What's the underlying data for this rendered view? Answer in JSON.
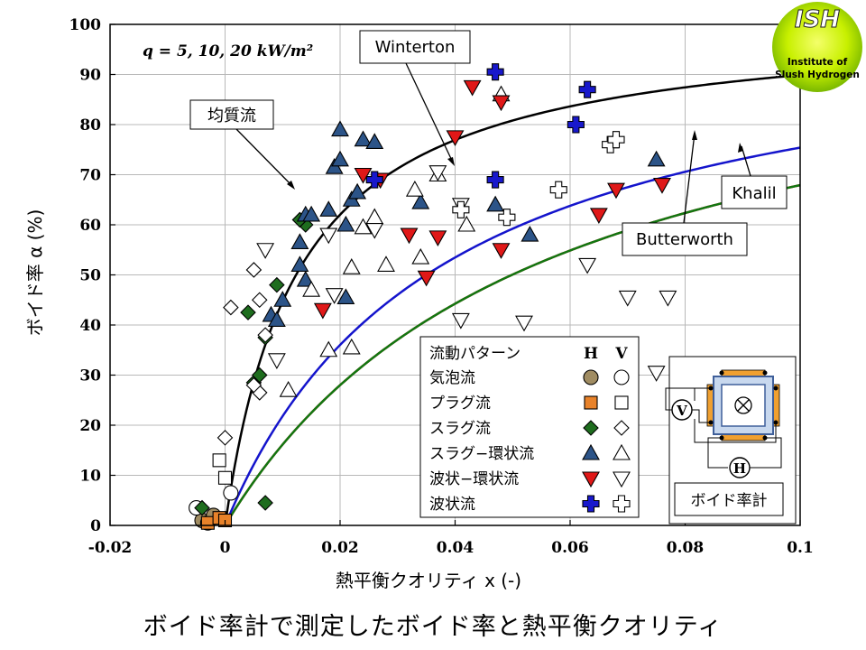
{
  "chart_data": {
    "type": "scatter",
    "xlabel": "熱平衡クオリティ x (-)",
    "ylabel": "ボイド率 α (%)",
    "xlim": [
      -0.02,
      0.1
    ],
    "ylim": [
      0,
      100
    ],
    "xticks": [
      -0.02,
      0,
      0.02,
      0.04,
      0.06,
      0.08,
      0.1
    ],
    "yticks": [
      0,
      10,
      20,
      30,
      40,
      50,
      60,
      70,
      80,
      90,
      100
    ],
    "xtick_labels": [
      "-0.02",
      "0",
      "0.02",
      "0.04",
      "0.06",
      "0.08",
      "0.1"
    ],
    "ytick_labels": [
      "0",
      "10",
      "20",
      "30",
      "40",
      "50",
      "60",
      "70",
      "80",
      "90",
      "100"
    ],
    "grid": true,
    "condition_label": "q = 5, 10, 20 kW/m²",
    "correlation_curves": [
      {
        "name": "均質流",
        "color": "#000000",
        "S": 1.0
      },
      {
        "name": "Winterton",
        "color": "#dd0000",
        "S": 4.2
      },
      {
        "name": "Butterworth",
        "color": "#1414cc",
        "S": 2.9
      },
      {
        "name": "Khalil",
        "color": "#117711",
        "S": 4.2
      }
    ],
    "curve_label_text": {
      "homogeneous": "均質流",
      "winterton": "Winterton",
      "butterworth": "Butterworth",
      "khalil": "Khalil"
    },
    "legend": {
      "header": "流動パターン",
      "col_h": "H",
      "col_v": "V",
      "entries": [
        {
          "label": "気泡流",
          "shape": "circle",
          "fill_h": "#a08c62"
        },
        {
          "label": "プラグ流",
          "shape": "square",
          "fill_h": "#e8822a"
        },
        {
          "label": "スラグ流",
          "shape": "diamond",
          "fill_h": "#1e6d1e"
        },
        {
          "label": "スラグ−環状流",
          "shape": "triangle-up",
          "fill_h": "#2c5488"
        },
        {
          "label": "波状−環状流",
          "shape": "triangle-down",
          "fill_h": "#e01818"
        },
        {
          "label": "波状流",
          "shape": "cross",
          "fill_h": "#1818cc"
        }
      ]
    },
    "series": [
      {
        "name": "気泡流 H",
        "shape": "circle",
        "filled": true,
        "color": "#a08c62",
        "points": [
          [
            -0.004,
            1.0
          ],
          [
            -0.003,
            0.5
          ],
          [
            -0.002,
            2.0
          ]
        ]
      },
      {
        "name": "気泡流 V",
        "shape": "circle",
        "filled": false,
        "points": [
          [
            -0.005,
            3.5
          ],
          [
            0.001,
            6.5
          ]
        ]
      },
      {
        "name": "プラグ流 H",
        "shape": "square",
        "filled": true,
        "color": "#e8822a",
        "points": [
          [
            -0.003,
            0.5
          ],
          [
            -0.001,
            1.5
          ],
          [
            0.0,
            1.0
          ]
        ]
      },
      {
        "name": "プラグ流 V",
        "shape": "square",
        "filled": false,
        "points": [
          [
            -0.001,
            13.0
          ],
          [
            0.0,
            9.5
          ]
        ]
      },
      {
        "name": "スラグ流 H",
        "shape": "diamond",
        "filled": true,
        "color": "#1e6d1e",
        "points": [
          [
            -0.004,
            3.5
          ],
          [
            0.004,
            42.5
          ],
          [
            0.007,
            4.5
          ],
          [
            0.005,
            28.5
          ],
          [
            0.006,
            30.0
          ],
          [
            0.007,
            37.5
          ],
          [
            0.009,
            48.0
          ],
          [
            0.014,
            60.0
          ],
          [
            0.013,
            61.0
          ]
        ]
      },
      {
        "name": "スラグ流 V",
        "shape": "diamond",
        "filled": false,
        "points": [
          [
            0.0,
            17.5
          ],
          [
            0.001,
            43.5
          ],
          [
            0.005,
            51.0
          ],
          [
            0.006,
            45.0
          ],
          [
            0.007,
            38.0
          ],
          [
            0.006,
            26.5
          ],
          [
            0.005,
            28.0
          ]
        ]
      },
      {
        "name": "スラグ−環状流 H",
        "shape": "triangle-up",
        "filled": true,
        "color": "#2c5488",
        "points": [
          [
            0.008,
            42.0
          ],
          [
            0.009,
            41.0
          ],
          [
            0.01,
            45.0
          ],
          [
            0.013,
            52.0
          ],
          [
            0.014,
            49.0
          ],
          [
            0.013,
            56.5
          ],
          [
            0.014,
            62.0
          ],
          [
            0.015,
            62.0
          ],
          [
            0.018,
            63.0
          ],
          [
            0.019,
            71.5
          ],
          [
            0.02,
            73.0
          ],
          [
            0.02,
            79.0
          ],
          [
            0.021,
            60.0
          ],
          [
            0.022,
            65.0
          ],
          [
            0.023,
            66.5
          ],
          [
            0.024,
            77.0
          ],
          [
            0.026,
            76.5
          ],
          [
            0.021,
            45.5
          ],
          [
            0.034,
            64.5
          ],
          [
            0.047,
            64.0
          ],
          [
            0.053,
            58.0
          ],
          [
            0.075,
            73.0
          ]
        ]
      },
      {
        "name": "スラグ−環状流 V",
        "shape": "triangle-up",
        "filled": false,
        "points": [
          [
            0.011,
            27.0
          ],
          [
            0.015,
            47.0
          ],
          [
            0.018,
            35.0
          ],
          [
            0.022,
            35.5
          ],
          [
            0.022,
            51.5
          ],
          [
            0.024,
            59.5
          ],
          [
            0.026,
            61.5
          ],
          [
            0.028,
            52.0
          ],
          [
            0.034,
            53.5
          ],
          [
            0.037,
            70.0
          ],
          [
            0.042,
            60.0
          ],
          [
            0.048,
            86.0
          ],
          [
            0.033,
            67.0
          ]
        ]
      },
      {
        "name": "波状−環状流 H",
        "shape": "triangle-down",
        "filled": true,
        "color": "#e01818",
        "points": [
          [
            0.017,
            43.0
          ],
          [
            0.024,
            70.0
          ],
          [
            0.027,
            69.0
          ],
          [
            0.032,
            58.0
          ],
          [
            0.035,
            49.5
          ],
          [
            0.037,
            57.5
          ],
          [
            0.04,
            77.5
          ],
          [
            0.043,
            87.5
          ],
          [
            0.048,
            55.0
          ],
          [
            0.048,
            84.5
          ],
          [
            0.065,
            62.0
          ],
          [
            0.068,
            67.0
          ],
          [
            0.076,
            68.0
          ]
        ]
      },
      {
        "name": "波状−環状流 V",
        "shape": "triangle-down",
        "filled": false,
        "points": [
          [
            0.007,
            55.0
          ],
          [
            0.009,
            33.0
          ],
          [
            0.018,
            58.0
          ],
          [
            0.019,
            46.0
          ],
          [
            0.026,
            59.0
          ],
          [
            0.037,
            70.5
          ],
          [
            0.041,
            64.0
          ],
          [
            0.041,
            41.0
          ],
          [
            0.052,
            40.5
          ],
          [
            0.063,
            52.0
          ],
          [
            0.07,
            45.5
          ],
          [
            0.075,
            30.5
          ],
          [
            0.077,
            45.5
          ]
        ]
      },
      {
        "name": "波状流 H",
        "shape": "cross",
        "filled": true,
        "color": "#1818cc",
        "points": [
          [
            0.026,
            69.0
          ],
          [
            0.047,
            90.5
          ],
          [
            0.047,
            69.0
          ],
          [
            0.061,
            80.0
          ],
          [
            0.063,
            87.0
          ]
        ]
      },
      {
        "name": "波状流 V",
        "shape": "cross",
        "filled": false,
        "points": [
          [
            0.041,
            63.0
          ],
          [
            0.049,
            61.5
          ],
          [
            0.058,
            67.0
          ],
          [
            0.067,
            76.0
          ],
          [
            0.068,
            77.0
          ]
        ]
      }
    ]
  },
  "logo": {
    "text_big": "ISH",
    "text_small_1": "Institute of",
    "text_small_2": "Slush Hydrogen"
  },
  "inset": {
    "label": "ボイド率計",
    "voltage": "V",
    "current": "H"
  },
  "caption": "ボイド率計で測定したボイド率と熱平衡クオリティ"
}
